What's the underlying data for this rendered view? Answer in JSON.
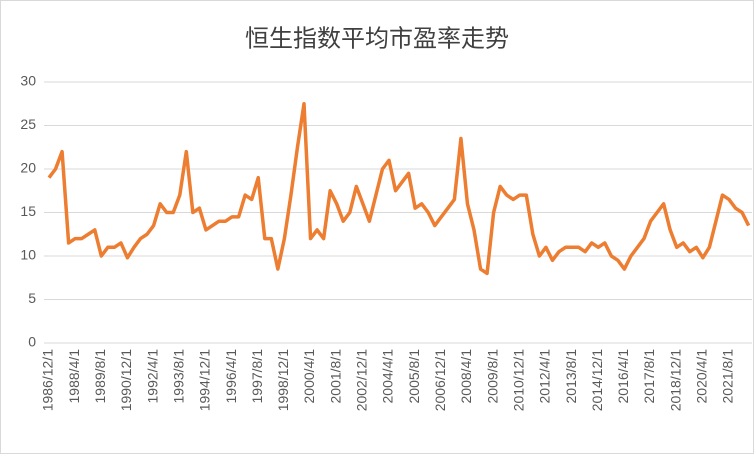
{
  "chart_data": {
    "type": "line",
    "title": "恒生指数平均市盈率走势",
    "categories": [
      "1986/12/1",
      null,
      null,
      null,
      "1988/4/1",
      null,
      null,
      null,
      "1989/8/1",
      null,
      null,
      null,
      "1990/12/1",
      null,
      null,
      null,
      "1992/4/1",
      null,
      null,
      null,
      "1993/8/1",
      null,
      null,
      null,
      "1994/12/1",
      null,
      null,
      null,
      "1996/4/1",
      null,
      null,
      null,
      "1997/8/1",
      null,
      null,
      null,
      "1998/12/1",
      null,
      null,
      null,
      "2000/4/1",
      null,
      null,
      null,
      "2001/8/1",
      null,
      null,
      null,
      "2002/12/1",
      null,
      null,
      null,
      "2004/4/1",
      null,
      null,
      null,
      "2005/8/1",
      null,
      null,
      null,
      "2006/12/1",
      null,
      null,
      null,
      "2008/4/1",
      null,
      null,
      null,
      "2009/8/1",
      null,
      null,
      null,
      "2010/12/1",
      null,
      null,
      null,
      "2012/4/1",
      null,
      null,
      null,
      "2013/8/1",
      null,
      null,
      null,
      "2014/12/1",
      null,
      null,
      null,
      "2016/4/1",
      null,
      null,
      null,
      "2017/8/1",
      null,
      null,
      null,
      "2018/12/1",
      null,
      null,
      null,
      "2020/4/1",
      null,
      null,
      null,
      "2021/8/1",
      null,
      null,
      null
    ],
    "series": [
      {
        "color": "#ed7d31",
        "values": [
          19,
          20,
          22,
          11.5,
          12,
          12,
          12.5,
          13,
          10,
          11,
          11,
          11.5,
          9.8,
          11,
          12,
          12.5,
          13.5,
          16,
          15,
          15,
          17,
          22,
          15,
          15.5,
          13,
          13.5,
          14,
          14,
          14.5,
          14.5,
          17,
          16.5,
          19,
          12,
          12,
          8.5,
          12,
          17,
          22.5,
          27.5,
          12,
          13,
          12,
          17.5,
          16,
          14,
          15,
          18,
          16,
          14,
          17,
          20,
          21,
          17.5,
          18.5,
          19.5,
          15.5,
          16,
          15,
          13.5,
          14.5,
          15.5,
          16.5,
          23.5,
          16,
          13,
          8.5,
          8,
          15,
          18,
          17,
          16.5,
          17,
          17,
          12.5,
          10,
          11,
          9.5,
          10.5,
          11,
          11,
          11,
          10.5,
          11.5,
          11,
          11.5,
          10,
          9.5,
          8.5,
          10,
          11,
          12,
          14,
          15,
          16,
          13,
          11,
          11.5,
          10.5,
          11,
          9.8,
          11,
          14,
          17,
          16.5,
          15.5,
          15,
          13.5
        ]
      }
    ],
    "ylim": [
      0,
      30
    ],
    "yticks": [
      0,
      5,
      10,
      15,
      20,
      25,
      30
    ],
    "grid": true
  }
}
